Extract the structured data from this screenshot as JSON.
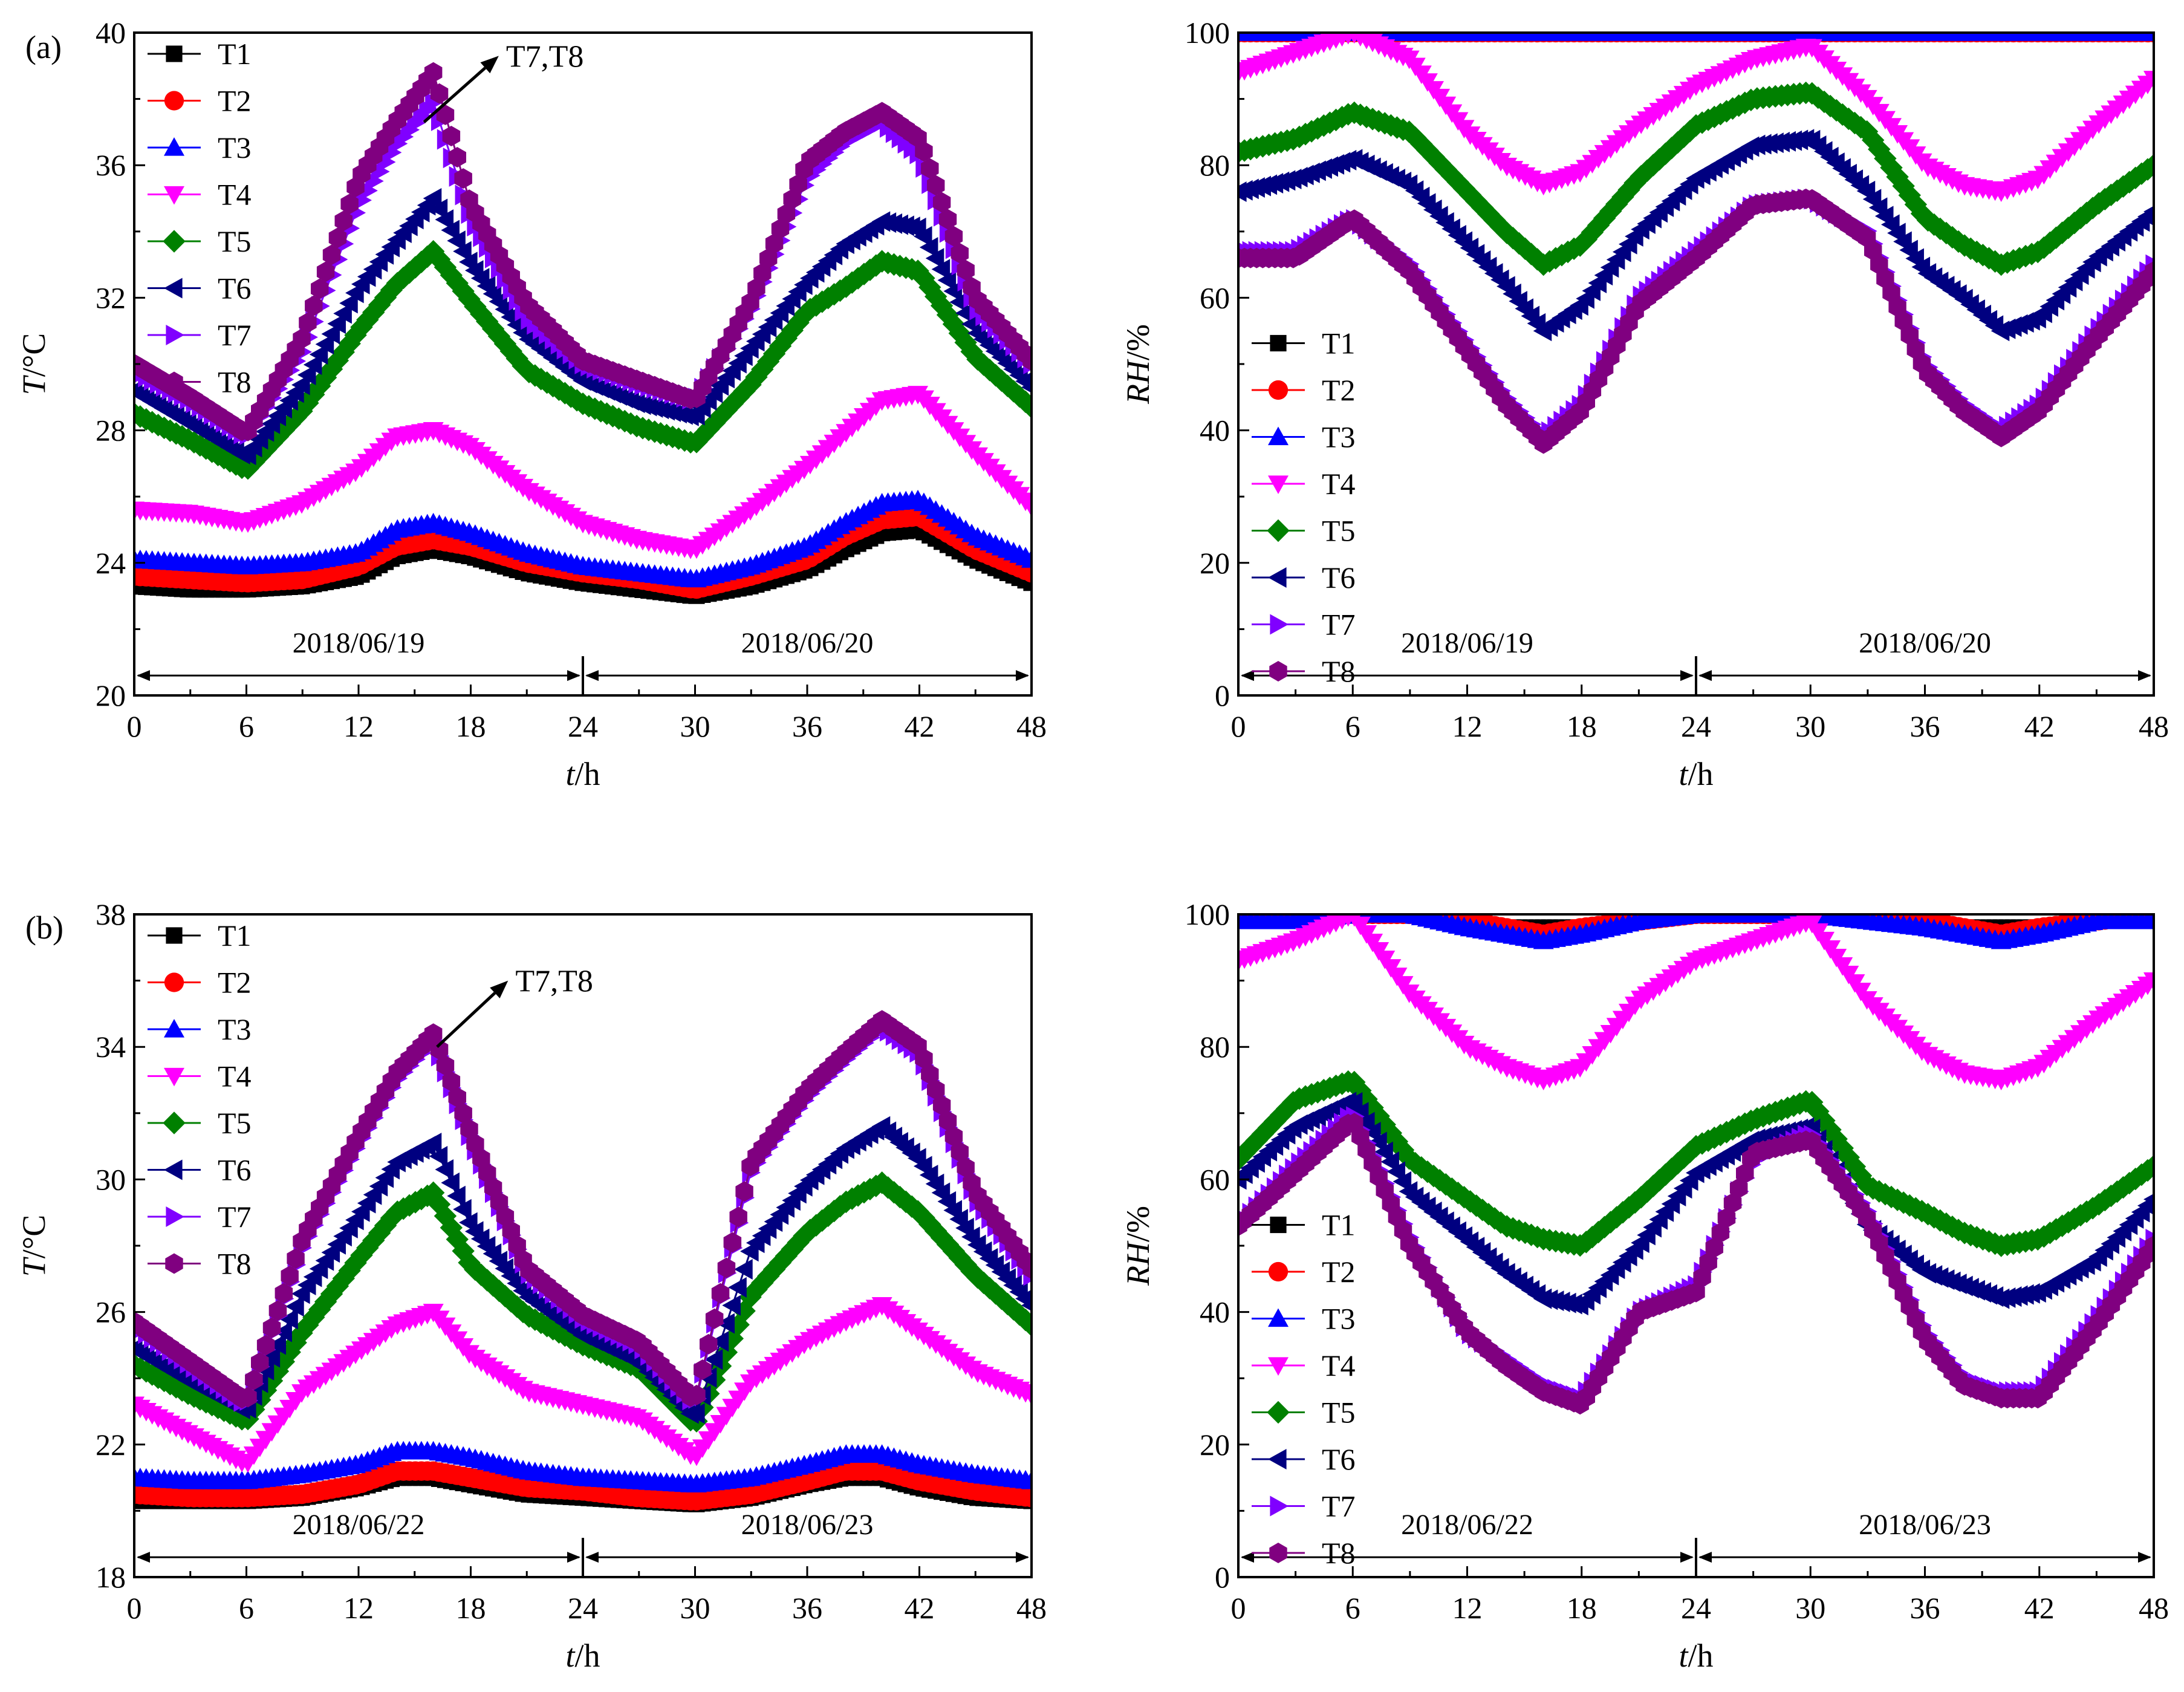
{
  "figure_labels": [
    "(a)",
    "(b)"
  ],
  "chart_data": [
    {
      "id": "a-temp",
      "type": "line",
      "panel_label": "(a)",
      "xlabel_italic": "t",
      "xlabel_unit": "/h",
      "ylabel_italic": "T",
      "ylabel_unit": "/°C",
      "xlim": [
        0,
        48
      ],
      "ylim": [
        20,
        40
      ],
      "xticks": [
        0,
        6,
        12,
        18,
        24,
        30,
        36,
        42,
        48
      ],
      "yticks": [
        20,
        24,
        28,
        32,
        36,
        40
      ],
      "legend_position": "top-left",
      "dates": [
        "2018/06/19",
        "2018/06/20"
      ],
      "date_arrow_y": 20.6,
      "date_label_y": 21.3,
      "annotation": {
        "text": "T7,T8",
        "from": [
          15.5,
          37.3
        ],
        "to": [
          19.5,
          39.3
        ]
      },
      "x": [
        0,
        3,
        6,
        9,
        12,
        14,
        16,
        18,
        21,
        24,
        27,
        30,
        33,
        36,
        38,
        40,
        42,
        45,
        48
      ],
      "series": [
        {
          "name": "T1",
          "values": [
            23.3,
            23.2,
            23.2,
            23.3,
            23.6,
            24.2,
            24.4,
            24.2,
            23.7,
            23.4,
            23.2,
            23.0,
            23.3,
            23.8,
            24.4,
            24.9,
            25.0,
            24.1,
            23.4
          ]
        },
        {
          "name": "T2",
          "values": [
            23.6,
            23.5,
            23.4,
            23.5,
            23.9,
            24.5,
            24.7,
            24.5,
            24.0,
            23.7,
            23.5,
            23.2,
            23.6,
            24.1,
            24.8,
            25.3,
            25.4,
            24.4,
            23.7
          ]
        },
        {
          "name": "T3",
          "values": [
            24.1,
            24.0,
            23.9,
            24.0,
            24.3,
            25.0,
            25.2,
            24.9,
            24.3,
            23.9,
            23.7,
            23.5,
            23.9,
            24.5,
            25.2,
            25.8,
            25.9,
            24.8,
            24.1
          ]
        },
        {
          "name": "T4",
          "values": [
            25.6,
            25.5,
            25.2,
            25.8,
            26.8,
            27.8,
            28.0,
            27.5,
            26.2,
            25.2,
            24.7,
            24.4,
            25.6,
            26.9,
            27.9,
            28.9,
            29.1,
            27.3,
            25.7
          ]
        },
        {
          "name": "T5",
          "values": [
            28.5,
            27.7,
            26.8,
            28.6,
            31.0,
            32.4,
            33.4,
            31.9,
            29.8,
            28.8,
            28.1,
            27.6,
            29.4,
            31.6,
            32.3,
            33.1,
            32.8,
            30.2,
            28.7
          ]
        },
        {
          "name": "T6",
          "values": [
            29.2,
            28.2,
            27.2,
            29.4,
            32.3,
            33.7,
            35.0,
            33.0,
            30.8,
            29.5,
            28.8,
            28.4,
            30.5,
            32.5,
            33.6,
            34.3,
            34.1,
            31.0,
            29.3
          ]
        },
        {
          "name": "T7",
          "values": [
            29.8,
            28.9,
            27.8,
            30.4,
            34.8,
            36.6,
            37.9,
            34.4,
            31.4,
            30.0,
            29.4,
            28.9,
            31.7,
            35.6,
            36.7,
            37.3,
            36.3,
            31.7,
            30.0
          ]
        },
        {
          "name": "T8",
          "values": [
            30.0,
            29.0,
            27.9,
            30.8,
            35.6,
            37.3,
            38.8,
            34.8,
            31.8,
            30.1,
            29.5,
            28.9,
            31.9,
            36.1,
            37.0,
            37.6,
            36.8,
            32.0,
            30.1
          ]
        }
      ]
    },
    {
      "id": "a-rh",
      "type": "line",
      "panel_label": "",
      "xlabel_italic": "t",
      "xlabel_unit": "/h",
      "ylabel_italic": "RH",
      "ylabel_unit": "/%",
      "xlim": [
        0,
        48
      ],
      "ylim": [
        0,
        100
      ],
      "xticks": [
        0,
        6,
        12,
        18,
        24,
        30,
        36,
        42,
        48
      ],
      "yticks": [
        0,
        20,
        40,
        60,
        80,
        100
      ],
      "legend_position": "bottom-left",
      "dates": [
        "2018/06/19",
        "2018/06/20"
      ],
      "date_arrow_y": 3,
      "date_label_y": 6.5,
      "x": [
        0,
        3,
        6,
        9,
        12,
        14,
        16,
        18,
        21,
        24,
        27,
        30,
        33,
        36,
        38,
        40,
        42,
        45,
        48
      ],
      "series": [
        {
          "name": "T1",
          "values": [
            100,
            100,
            100,
            100,
            100,
            100,
            100,
            100,
            100,
            100,
            100,
            100,
            100,
            100,
            100,
            100,
            100,
            100,
            100
          ]
        },
        {
          "name": "T2",
          "values": [
            100,
            100,
            100,
            100,
            100,
            100,
            100,
            100,
            100,
            100,
            100,
            100,
            100,
            100,
            100,
            100,
            100,
            100,
            100
          ]
        },
        {
          "name": "T3",
          "values": [
            100,
            100,
            100,
            100,
            100,
            100,
            100,
            100,
            100,
            100,
            100,
            100,
            100,
            100,
            100,
            100,
            100,
            100,
            100
          ]
        },
        {
          "name": "T4",
          "values": [
            94,
            97,
            100,
            96,
            85,
            80,
            77,
            79,
            86,
            92,
            96,
            98,
            90,
            80,
            77,
            76,
            78,
            86,
            93
          ]
        },
        {
          "name": "T5",
          "values": [
            82,
            84,
            88,
            85,
            76,
            70,
            65,
            68,
            78,
            86,
            90,
            91,
            85,
            72,
            68,
            65,
            67,
            74,
            80
          ]
        },
        {
          "name": "T6",
          "values": [
            76,
            78,
            81,
            77,
            68,
            62,
            55,
            59,
            70,
            78,
            83,
            84,
            76,
            64,
            60,
            55,
            57,
            66,
            73
          ]
        },
        {
          "name": "T7",
          "values": [
            67,
            67,
            72,
            65,
            53,
            45,
            39,
            44,
            60,
            67,
            74,
            75,
            70,
            50,
            44,
            40,
            44,
            55,
            65
          ]
        },
        {
          "name": "T8",
          "values": [
            66,
            66,
            72,
            64,
            52,
            44,
            38,
            43,
            59,
            66,
            74,
            75,
            69,
            49,
            43,
            39,
            43,
            54,
            64
          ]
        }
      ]
    },
    {
      "id": "b-temp",
      "type": "line",
      "panel_label": "(b)",
      "xlabel_italic": "t",
      "xlabel_unit": "/h",
      "ylabel_italic": "T",
      "ylabel_unit": "/°C",
      "xlim": [
        0,
        48
      ],
      "ylim": [
        18,
        38
      ],
      "xticks": [
        0,
        6,
        12,
        18,
        24,
        30,
        36,
        42,
        48
      ],
      "yticks": [
        18,
        22,
        26,
        30,
        34,
        38
      ],
      "legend_position": "top-left",
      "dates": [
        "2018/06/22",
        "2018/06/23"
      ],
      "date_arrow_y": 18.6,
      "date_label_y": 19.3,
      "annotation": {
        "text": "T7,T8",
        "from": [
          16.2,
          34.0
        ],
        "to": [
          20.0,
          36.0
        ]
      },
      "x": [
        0,
        3,
        6,
        9,
        12,
        14,
        16,
        18,
        21,
        24,
        27,
        30,
        33,
        36,
        38,
        40,
        42,
        45,
        48
      ],
      "series": [
        {
          "name": "T1",
          "values": [
            20.3,
            20.3,
            20.3,
            20.4,
            20.7,
            21.0,
            21.0,
            20.8,
            20.5,
            20.4,
            20.3,
            20.2,
            20.4,
            20.8,
            21.0,
            21.0,
            20.7,
            20.4,
            20.3
          ]
        },
        {
          "name": "T2",
          "values": [
            20.5,
            20.4,
            20.4,
            20.5,
            20.8,
            21.2,
            21.2,
            21.0,
            20.7,
            20.6,
            20.4,
            20.3,
            20.5,
            20.9,
            21.2,
            21.2,
            20.9,
            20.6,
            20.4
          ]
        },
        {
          "name": "T3",
          "values": [
            21.0,
            20.9,
            20.9,
            21.1,
            21.4,
            21.8,
            21.8,
            21.6,
            21.2,
            21.0,
            20.9,
            20.8,
            21.0,
            21.4,
            21.7,
            21.7,
            21.4,
            21.1,
            20.9
          ]
        },
        {
          "name": "T4",
          "values": [
            23.2,
            22.3,
            21.4,
            23.6,
            24.8,
            25.6,
            26.0,
            24.7,
            23.6,
            23.2,
            22.8,
            21.6,
            23.9,
            25.1,
            25.7,
            26.2,
            25.4,
            24.2,
            23.5
          ]
        },
        {
          "name": "T5",
          "values": [
            24.4,
            23.5,
            22.7,
            25.4,
            27.6,
            29.0,
            29.6,
            27.4,
            25.9,
            25.0,
            24.3,
            22.6,
            26.5,
            28.4,
            29.3,
            29.9,
            29.0,
            27.1,
            25.6
          ]
        },
        {
          "name": "T6",
          "values": [
            24.9,
            23.9,
            23.0,
            26.6,
            28.9,
            30.5,
            31.1,
            28.6,
            26.5,
            25.3,
            24.5,
            22.8,
            27.9,
            29.9,
            30.9,
            31.6,
            30.6,
            28.1,
            26.2
          ]
        },
        {
          "name": "T7",
          "values": [
            25.6,
            24.4,
            23.2,
            28.0,
            31.1,
            33.0,
            34.2,
            31.2,
            27.2,
            25.8,
            25.0,
            23.2,
            30.3,
            32.5,
            33.6,
            34.6,
            33.8,
            29.4,
            27.1
          ]
        },
        {
          "name": "T8",
          "values": [
            25.7,
            24.5,
            23.3,
            28.2,
            31.3,
            33.2,
            34.4,
            31.4,
            27.3,
            25.9,
            25.1,
            23.3,
            30.5,
            32.7,
            33.8,
            34.8,
            34.0,
            29.6,
            27.3
          ]
        }
      ]
    },
    {
      "id": "b-rh",
      "type": "line",
      "panel_label": "",
      "xlabel_italic": "t",
      "xlabel_unit": "/h",
      "ylabel_italic": "RH",
      "ylabel_unit": "/%",
      "xlim": [
        0,
        48
      ],
      "ylim": [
        0,
        100
      ],
      "xticks": [
        0,
        6,
        12,
        18,
        24,
        30,
        36,
        42,
        48
      ],
      "yticks": [
        0,
        20,
        40,
        60,
        80,
        100
      ],
      "legend_position": "bottom-left",
      "dates": [
        "2018/06/22",
        "2018/06/23"
      ],
      "date_arrow_y": 3,
      "date_label_y": 6.5,
      "x": [
        0,
        3,
        6,
        9,
        12,
        14,
        16,
        18,
        21,
        24,
        27,
        30,
        33,
        36,
        38,
        40,
        42,
        45,
        48
      ],
      "series": [
        {
          "name": "T1",
          "values": [
            100,
            100,
            100,
            100,
            99,
            98,
            98,
            98,
            99,
            100,
            100,
            100,
            100,
            99,
            98,
            98,
            98,
            99,
            100
          ]
        },
        {
          "name": "T2",
          "values": [
            100,
            100,
            100,
            100,
            99,
            98,
            97,
            98,
            99,
            100,
            100,
            100,
            100,
            99,
            98,
            97,
            98,
            99,
            100
          ]
        },
        {
          "name": "T3",
          "values": [
            99,
            99,
            100,
            100,
            98,
            97,
            96,
            97,
            99,
            100,
            100,
            100,
            99,
            98,
            97,
            96,
            97,
            99,
            99
          ]
        },
        {
          "name": "T4",
          "values": [
            93,
            96,
            100,
            88,
            80,
            77,
            75,
            77,
            87,
            93,
            96,
            99,
            87,
            79,
            76,
            75,
            77,
            84,
            90
          ]
        },
        {
          "name": "T5",
          "values": [
            63,
            72,
            75,
            63,
            57,
            53,
            51,
            50,
            57,
            65,
            69,
            72,
            59,
            55,
            52,
            50,
            51,
            56,
            62
          ]
        },
        {
          "name": "T6",
          "values": [
            60,
            68,
            72,
            58,
            51,
            46,
            42,
            41,
            50,
            61,
            66,
            68,
            53,
            46,
            44,
            42,
            43,
            48,
            57
          ]
        },
        {
          "name": "T7",
          "values": [
            53,
            62,
            70,
            51,
            37,
            33,
            29,
            27,
            40,
            44,
            63,
            67,
            55,
            37,
            30,
            28,
            28,
            39,
            51
          ]
        },
        {
          "name": "T8",
          "values": [
            53,
            61,
            69,
            50,
            37,
            32,
            28,
            26,
            40,
            43,
            64,
            66,
            54,
            36,
            29,
            27,
            27,
            38,
            50
          ]
        }
      ]
    }
  ],
  "series_style": {
    "T1": {
      "color": "#000000",
      "marker": "square"
    },
    "T2": {
      "color": "#ff0000",
      "marker": "circle"
    },
    "T3": {
      "color": "#0000ff",
      "marker": "triangle-up"
    },
    "T4": {
      "color": "#ff00ff",
      "marker": "triangle-down"
    },
    "T5": {
      "color": "#008000",
      "marker": "diamond"
    },
    "T6": {
      "color": "#000080",
      "marker": "triangle-left"
    },
    "T7": {
      "color": "#8000ff",
      "marker": "triangle-right"
    },
    "T8": {
      "color": "#800080",
      "marker": "hexagon"
    }
  }
}
